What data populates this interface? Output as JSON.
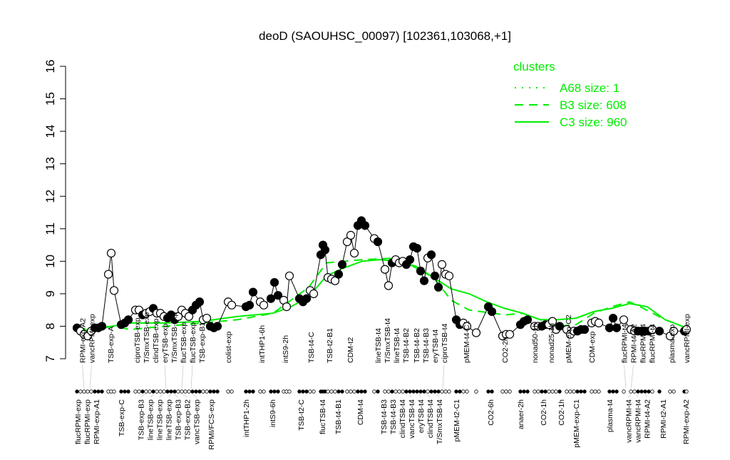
{
  "chart_data": {
    "type": "line",
    "title": "deoD (SAOUHSC_00097) [102361,103068,+1]",
    "ylim": [
      7,
      16
    ],
    "yticks": [
      "7",
      "8",
      "9",
      "10",
      "11",
      "12",
      "13",
      "14",
      "15",
      "16"
    ],
    "xlim": [
      0,
      171
    ],
    "grid": false,
    "legend": {
      "title": "clusters",
      "placement": "top-right",
      "color": "#00ee00",
      "entries": [
        {
          "label": "A68 size: 1",
          "style": "dotted"
        },
        {
          "label": "B3 size: 608",
          "style": "dashed"
        },
        {
          "label": "C3 size: 960",
          "style": "solid"
        }
      ]
    },
    "colors": {
      "points": "#000000",
      "clusters": "#00ee00"
    },
    "points": [
      [
        0,
        7.95,
        1
      ],
      [
        1,
        7.85,
        0
      ],
      [
        2,
        7.75,
        0
      ],
      [
        3,
        7.7,
        0
      ],
      [
        4,
        7.85,
        0
      ],
      [
        5,
        7.95,
        1
      ],
      [
        6,
        7.95,
        1
      ],
      [
        7,
        8.0,
        1
      ],
      [
        8.8,
        9.6,
        0
      ],
      [
        9.6,
        10.25,
        0
      ],
      [
        10.4,
        9.1,
        0
      ],
      [
        12.4,
        8.05,
        1
      ],
      [
        13.4,
        8.1,
        1
      ],
      [
        14.4,
        8.2,
        1
      ],
      [
        16.4,
        8.5,
        0
      ],
      [
        17.4,
        8.5,
        0
      ],
      [
        18.4,
        8.35,
        1
      ],
      [
        19.4,
        8.4,
        0
      ],
      [
        20.4,
        8.45,
        0
      ],
      [
        21.4,
        8.55,
        1
      ],
      [
        22.4,
        8.4,
        0
      ],
      [
        23.4,
        8.4,
        0
      ],
      [
        24.4,
        8.3,
        0
      ],
      [
        25.4,
        8.25,
        1
      ],
      [
        26.4,
        8.35,
        1
      ],
      [
        27.4,
        8.2,
        1
      ],
      [
        28.4,
        8.3,
        0
      ],
      [
        29.4,
        8.5,
        0
      ],
      [
        30.4,
        8.4,
        0
      ],
      [
        31.4,
        8.3,
        0
      ],
      [
        32.4,
        8.5,
        1
      ],
      [
        33.4,
        8.65,
        1
      ],
      [
        34.4,
        8.75,
        1
      ],
      [
        35.4,
        8.2,
        0
      ],
      [
        36.4,
        8.25,
        0
      ],
      [
        37.4,
        8.0,
        1
      ],
      [
        38.4,
        7.95,
        1
      ],
      [
        39.4,
        8.0,
        1
      ],
      [
        42.4,
        8.75,
        0
      ],
      [
        43.4,
        8.65,
        0
      ],
      [
        47.4,
        8.6,
        1
      ],
      [
        48.4,
        8.65,
        1
      ],
      [
        49.4,
        9.05,
        1
      ],
      [
        51.4,
        8.75,
        0
      ],
      [
        52.4,
        8.65,
        0
      ],
      [
        54.4,
        8.85,
        1
      ],
      [
        55.4,
        9.35,
        1
      ],
      [
        56.4,
        8.95,
        1
      ],
      [
        58,
        8.8,
        0
      ],
      [
        58.8,
        8.6,
        0
      ],
      [
        59.6,
        9.55,
        0
      ],
      [
        62.4,
        8.85,
        1
      ],
      [
        63.4,
        8.75,
        1
      ],
      [
        64.4,
        8.85,
        1
      ],
      [
        65.4,
        9.1,
        0
      ],
      [
        66.4,
        9.0,
        0
      ],
      [
        68.4,
        10.2,
        1
      ],
      [
        69,
        10.5,
        1
      ],
      [
        69.6,
        10.35,
        1
      ],
      [
        70.4,
        9.5,
        0
      ],
      [
        71.4,
        9.45,
        0
      ],
      [
        72.4,
        9.4,
        0
      ],
      [
        73.4,
        9.6,
        1
      ],
      [
        74.4,
        9.9,
        1
      ],
      [
        75.8,
        10.6,
        0
      ],
      [
        76.8,
        10.8,
        0
      ],
      [
        77.8,
        10.25,
        0
      ],
      [
        78.8,
        11.1,
        1
      ],
      [
        79.8,
        11.25,
        1
      ],
      [
        80.8,
        11.1,
        1
      ],
      [
        83.4,
        10.7,
        0
      ],
      [
        84.4,
        10.6,
        1
      ],
      [
        86.4,
        9.75,
        0
      ],
      [
        87.4,
        9.25,
        0
      ],
      [
        88.4,
        9.95,
        1
      ],
      [
        89.4,
        10.05,
        0
      ],
      [
        90.4,
        9.95,
        0
      ],
      [
        91.4,
        10.0,
        0
      ],
      [
        92.4,
        9.9,
        1
      ],
      [
        93.4,
        10.05,
        1
      ],
      [
        94.4,
        10.45,
        1
      ],
      [
        95.4,
        10.4,
        1
      ],
      [
        96.4,
        9.7,
        1
      ],
      [
        97.4,
        9.4,
        1
      ],
      [
        98.4,
        10.1,
        0
      ],
      [
        99.4,
        10.2,
        1
      ],
      [
        100.4,
        9.55,
        1
      ],
      [
        101.4,
        9.2,
        1
      ],
      [
        102.4,
        9.9,
        0
      ],
      [
        103.4,
        9.6,
        0
      ],
      [
        104.4,
        9.55,
        0
      ],
      [
        106.4,
        8.2,
        1
      ],
      [
        107.4,
        8.05,
        1
      ],
      [
        108.4,
        8.1,
        0
      ],
      [
        109.4,
        8.0,
        0
      ],
      [
        112,
        7.8,
        0
      ],
      [
        115.4,
        8.6,
        1
      ],
      [
        116.4,
        8.45,
        1
      ],
      [
        119.4,
        7.7,
        0
      ],
      [
        120.4,
        7.75,
        0
      ],
      [
        121.4,
        7.75,
        0
      ],
      [
        124.4,
        8.05,
        1
      ],
      [
        125.4,
        8.15,
        1
      ],
      [
        126.4,
        8.2,
        1
      ],
      [
        128.4,
        8.0,
        0
      ],
      [
        129.4,
        8.0,
        0
      ],
      [
        130.4,
        8.0,
        1
      ],
      [
        131.4,
        8.05,
        1
      ],
      [
        132.4,
        8.05,
        0
      ],
      [
        133.4,
        8.15,
        0
      ],
      [
        134.4,
        7.9,
        0
      ],
      [
        135.4,
        8.0,
        1
      ],
      [
        137.4,
        7.9,
        0
      ],
      [
        138.4,
        7.75,
        0
      ],
      [
        139.4,
        7.85,
        0
      ],
      [
        140.4,
        7.85,
        1
      ],
      [
        141.4,
        7.9,
        1
      ],
      [
        142.4,
        7.9,
        1
      ],
      [
        144.4,
        8.1,
        0
      ],
      [
        145.4,
        8.15,
        0
      ],
      [
        146.4,
        8.1,
        0
      ],
      [
        149.4,
        7.95,
        1
      ],
      [
        150.4,
        8.25,
        1
      ],
      [
        151.4,
        7.95,
        1
      ],
      [
        153.4,
        8.2,
        0
      ],
      [
        155.4,
        7.9,
        0
      ],
      [
        156.4,
        7.85,
        0
      ],
      [
        157.4,
        7.85,
        1
      ],
      [
        158.4,
        7.85,
        1
      ],
      [
        159.4,
        7.85,
        1
      ],
      [
        160.4,
        7.85,
        1
      ],
      [
        161.4,
        7.9,
        0
      ],
      [
        163.4,
        7.85,
        1
      ],
      [
        166.4,
        7.7,
        0
      ],
      [
        167.4,
        7.85,
        0
      ],
      [
        170.4,
        7.85,
        1
      ],
      [
        171,
        7.9,
        0
      ]
    ],
    "clusters": {
      "C3": [
        [
          0,
          7.85
        ],
        [
          8,
          7.95
        ],
        [
          10,
          8.0
        ],
        [
          15,
          8.1
        ],
        [
          25,
          8.1
        ],
        [
          35,
          8.15
        ],
        [
          45,
          8.3
        ],
        [
          55,
          8.4
        ],
        [
          60,
          8.6
        ],
        [
          65,
          8.9
        ],
        [
          70,
          9.55
        ],
        [
          75,
          9.8
        ],
        [
          80,
          10.0
        ],
        [
          85,
          10.05
        ],
        [
          90,
          10.0
        ],
        [
          95,
          9.85
        ],
        [
          100,
          9.5
        ],
        [
          105,
          9.15
        ],
        [
          110,
          9.0
        ],
        [
          115,
          8.75
        ],
        [
          120,
          8.55
        ],
        [
          125,
          8.4
        ],
        [
          130,
          8.2
        ],
        [
          135,
          8.2
        ],
        [
          140,
          8.25
        ],
        [
          145,
          8.45
        ],
        [
          150,
          8.55
        ],
        [
          155,
          8.7
        ],
        [
          160,
          8.6
        ],
        [
          165,
          8.2
        ],
        [
          171,
          7.95
        ]
      ],
      "B3": [
        [
          0,
          7.9
        ],
        [
          10,
          8.0
        ],
        [
          15,
          7.9
        ],
        [
          25,
          8.0
        ],
        [
          35,
          8.1
        ],
        [
          45,
          8.2
        ],
        [
          55,
          8.4
        ],
        [
          65,
          9.2
        ],
        [
          70,
          9.95
        ],
        [
          80,
          10.05
        ],
        [
          90,
          10.1
        ],
        [
          95,
          9.8
        ],
        [
          100,
          9.5
        ],
        [
          105,
          8.8
        ],
        [
          110,
          8.5
        ],
        [
          120,
          8.35
        ],
        [
          125,
          8.4
        ],
        [
          130,
          8.2
        ],
        [
          135,
          8.0
        ],
        [
          140,
          8.05
        ],
        [
          145,
          8.4
        ],
        [
          150,
          8.6
        ],
        [
          155,
          8.75
        ],
        [
          158,
          8.6
        ],
        [
          165,
          8.2
        ],
        [
          171,
          7.95
        ]
      ]
    },
    "top_labels": [
      [
        2,
        "RPMI-exp-A2"
      ],
      [
        3.6,
        "vancRPMI-exp"
      ],
      [
        9.4,
        "TSB-exp-A"
      ],
      [
        16.8,
        "ciproTSB-exp"
      ],
      [
        19.4,
        "T/SmxTSB-exp"
      ],
      [
        22,
        "clindTSB-exp"
      ],
      [
        25,
        "eryTSB-exp"
      ],
      [
        27.4,
        "T/SmxTSB-exp"
      ],
      [
        29.4,
        "flucTSB-exp"
      ],
      [
        32,
        "flucTSB-exp"
      ],
      [
        35.2,
        "TSB-exp-B1"
      ],
      [
        42.4,
        "colist-exp"
      ],
      [
        51.8,
        "intTHP1-6h"
      ],
      [
        58.4,
        "intS9-2h"
      ],
      [
        65.6,
        "TSB-t4-C"
      ],
      [
        70.8,
        "TSB-t2-B1"
      ],
      [
        76.6,
        "CDM-t2"
      ],
      [
        84.4,
        "lineTSB-t4"
      ],
      [
        87,
        "T/SmxTSB-t4"
      ],
      [
        89.6,
        "lineTSB-t4"
      ],
      [
        92,
        "TSB-t4-B2"
      ],
      [
        95.2,
        "TSB-t4-B2"
      ],
      [
        98,
        "TSB-t4-B3"
      ],
      [
        100.4,
        "eryTSB-t4"
      ],
      [
        102.6,
        "ciproTSB-t4"
      ],
      [
        109.2,
        "pMEM-t4-C1"
      ],
      [
        120,
        "CO2-2h"
      ],
      [
        128.4,
        "nonad50-1h"
      ],
      [
        133,
        "nonad25-1h"
      ],
      [
        137.8,
        "pMEM-exp-C2"
      ],
      [
        144.4,
        "CDM-exp"
      ],
      [
        154,
        "flucRPMI-t4"
      ],
      [
        155.4,
        "RPMI-t4-A2"
      ],
      [
        158.8,
        "flucRPMI-t4"
      ],
      [
        161.4,
        "flucRPMI-t4"
      ],
      [
        166.8,
        "plasma-exp"
      ],
      [
        171,
        "vancRPMI-exp"
      ]
    ],
    "bottom_labels": [
      [
        0.4,
        "flucRPMI-exp"
      ],
      [
        2.8,
        "flucRPMI-exp"
      ],
      [
        5.2,
        "RPMI-exp-A1"
      ],
      [
        12.4,
        "TSB-exp-C"
      ],
      [
        19,
        "TSB-exp-B3"
      ],
      [
        21.4,
        "lineTSB-exp"
      ],
      [
        24,
        "lineTSB-exp"
      ],
      [
        26.4,
        "lineTSB-exp"
      ],
      [
        27.4,
        "TSB-exp-B3"
      ],
      [
        29.6,
        "TSB-exp-B2"
      ],
      [
        32.4,
        "vancTSB-exp"
      ],
      [
        37.6,
        "RPMI/FCS-exp"
      ],
      [
        47.4,
        "intTHP1-2h"
      ],
      [
        54.8,
        "intS9-6h"
      ],
      [
        62.8,
        "TSB-t2-C"
      ],
      [
        68.8,
        "flucTSB-t4"
      ],
      [
        73.2,
        "TSB-t4-B1"
      ],
      [
        79.4,
        "CDM-t4"
      ],
      [
        86,
        "TSB-t4-B3"
      ],
      [
        88.8,
        "TSB-t4-B3"
      ],
      [
        91,
        "clindTSB-t4"
      ],
      [
        93.4,
        "vancTSB-t4"
      ],
      [
        96,
        "eryTSB-t4"
      ],
      [
        98.4,
        "clindTSB-t4"
      ],
      [
        101,
        "T/SmxTSB-t4"
      ],
      [
        106.4,
        "pMEM-t2-C1"
      ],
      [
        116,
        "CO2-6h"
      ],
      [
        124.4,
        "anaer-2h"
      ],
      [
        130.8,
        "CO2-1h"
      ],
      [
        135.8,
        "CO2-1h"
      ],
      [
        140,
        "pMEM-exp-C1"
      ],
      [
        149.4,
        "plasma-t4"
      ],
      [
        155.4,
        "vancRPMI-t4"
      ],
      [
        157,
        "vancRPMI-t4"
      ],
      [
        159.4,
        "RPMI-t4-A2"
      ],
      [
        164.4,
        "RPMI-t2-A1"
      ],
      [
        170.8,
        "RPMI-exp-A2"
      ]
    ]
  }
}
